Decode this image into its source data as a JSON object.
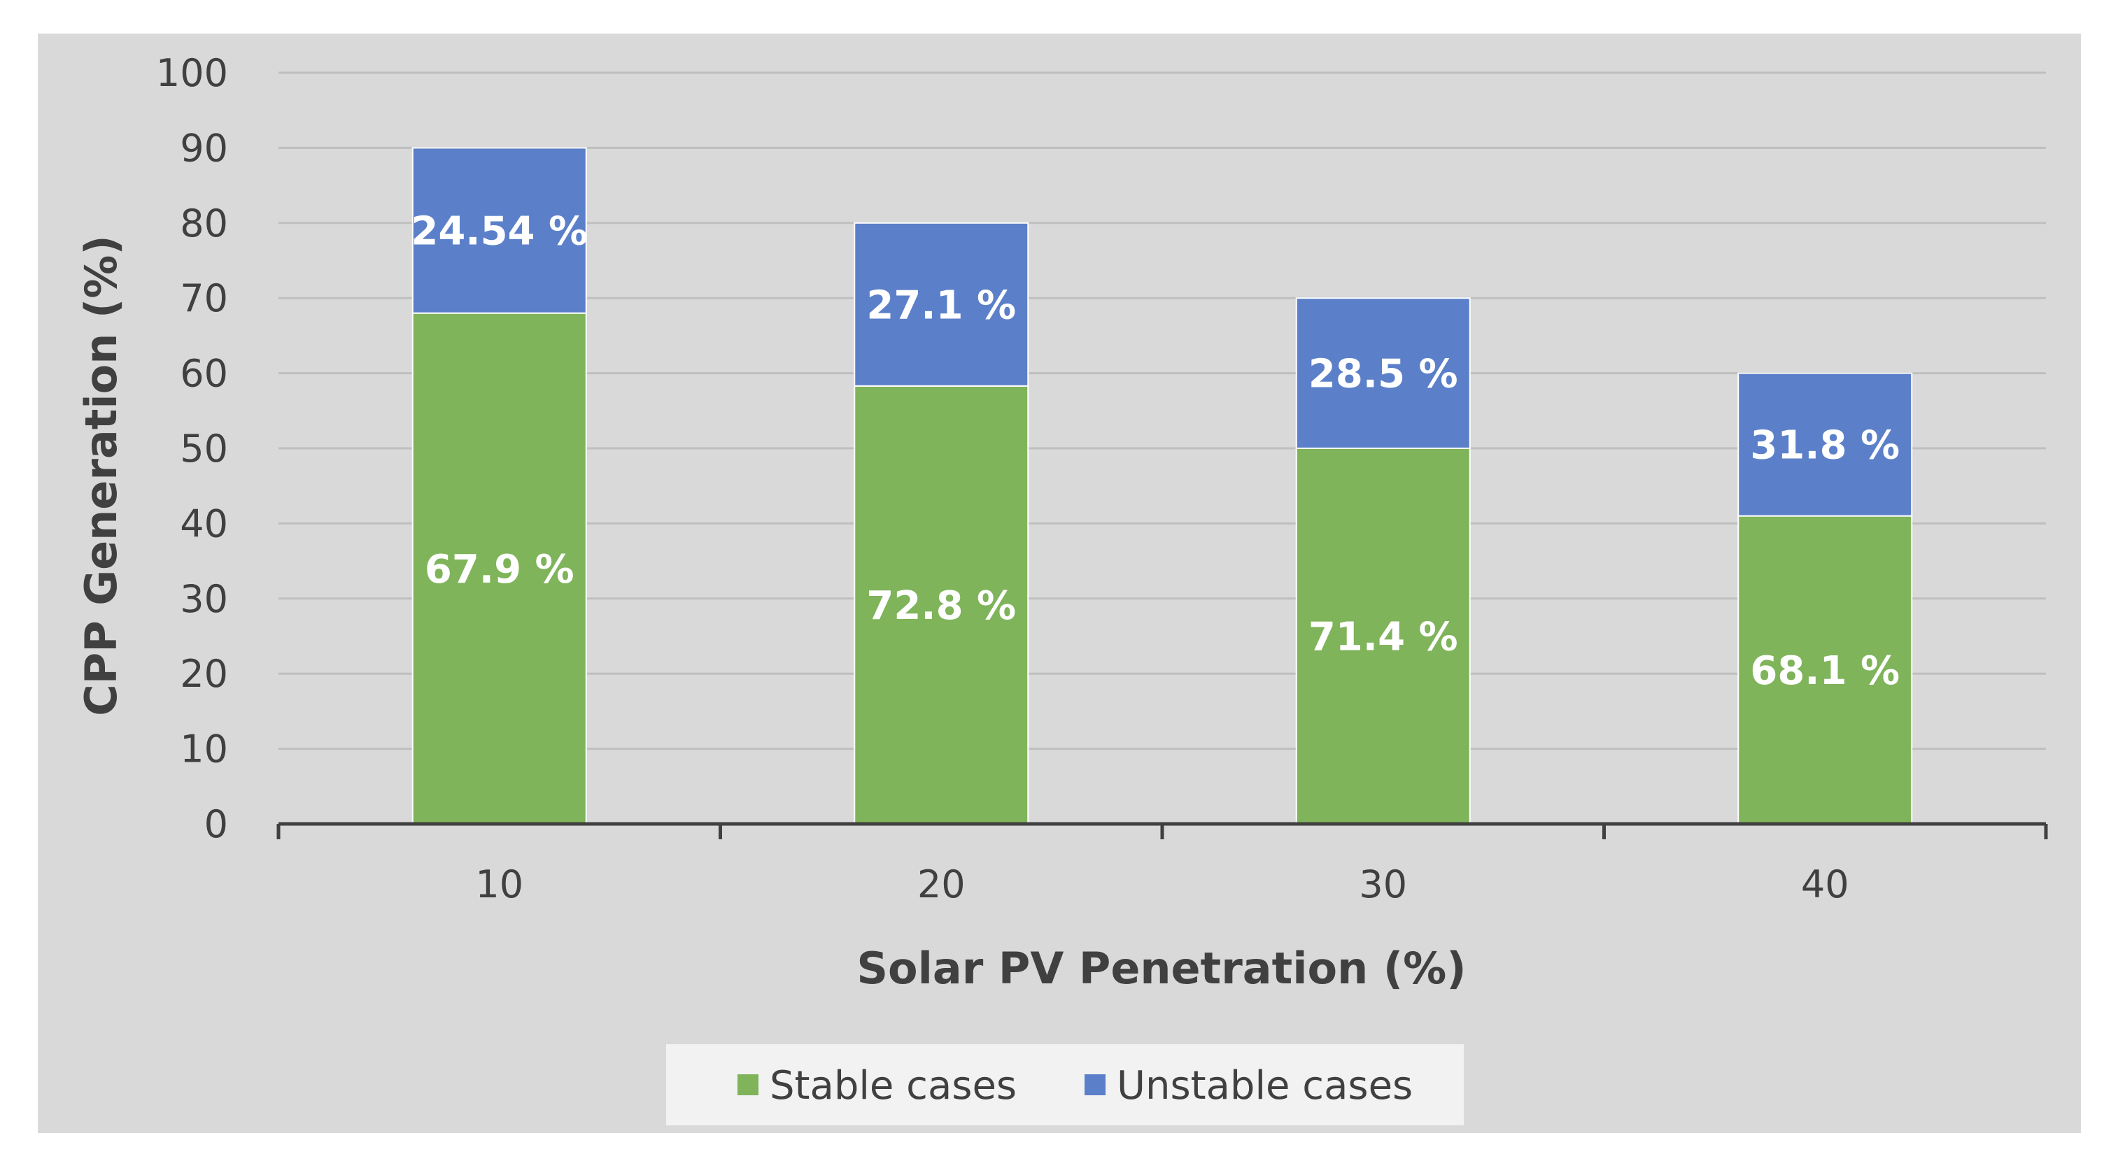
{
  "chart_data": {
    "type": "bar",
    "stacked": true,
    "title": "",
    "xlabel": "Solar PV Penetration (%)",
    "ylabel": "CPP Generation (%)",
    "categories": [
      "10",
      "20",
      "30",
      "40"
    ],
    "ylim": [
      0,
      100
    ],
    "yticks": [
      "0",
      "10",
      "20",
      "30",
      "40",
      "50",
      "60",
      "70",
      "80",
      "90",
      "100"
    ],
    "grid": true,
    "legend_position": "bottom",
    "series": [
      {
        "name": "Stable cases",
        "color": "#7fb45a",
        "values": [
          68,
          58.3,
          50,
          41
        ],
        "labels": [
          "67.9 %",
          "72.8 %",
          "71.4 %",
          "68.1 %"
        ]
      },
      {
        "name": "Unstable cases",
        "color": "#5b80c9",
        "values": [
          22,
          21.7,
          20,
          19
        ],
        "labels": [
          "24.54 %",
          "27.1 %",
          "28.5 %",
          "31.8 %"
        ]
      }
    ]
  }
}
